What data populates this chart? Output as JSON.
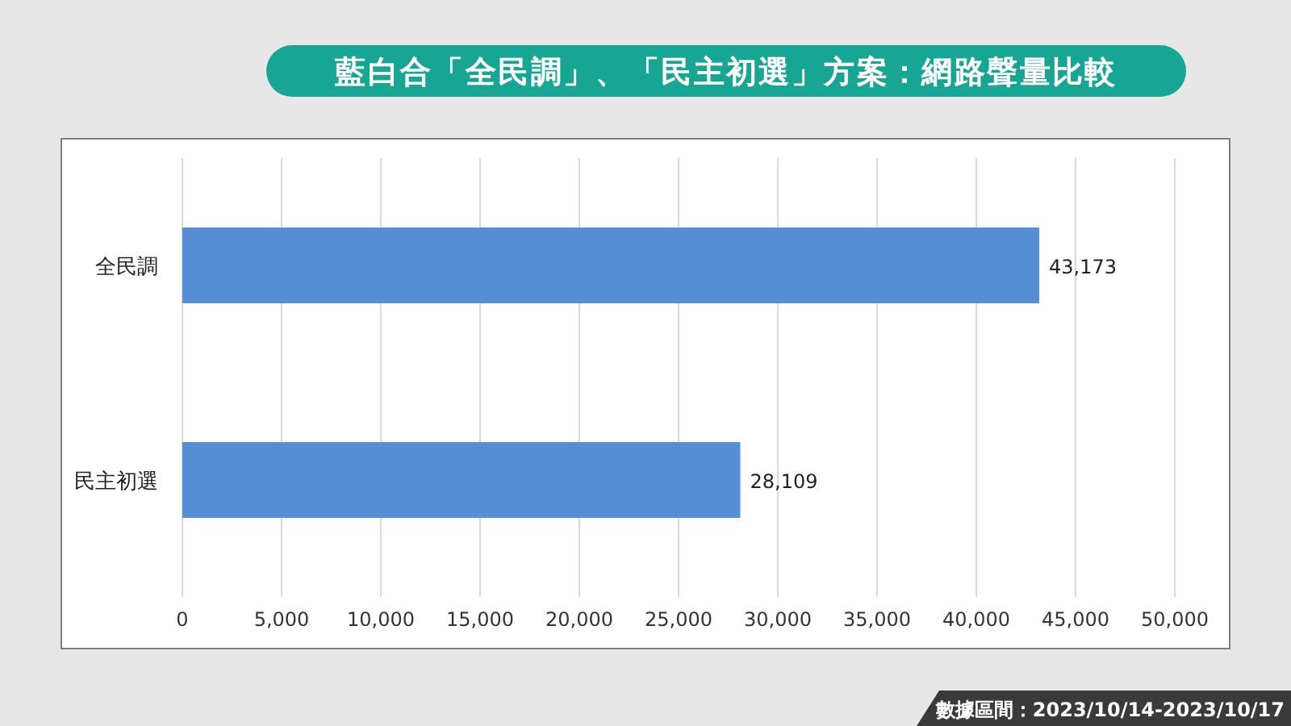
{
  "chart_data": {
    "type": "bar",
    "orientation": "horizontal",
    "title": "藍白合「全民調」、「民主初選」方案：網路聲量比較",
    "categories": [
      "全民調",
      "民主初選"
    ],
    "values": [
      43173,
      28109
    ],
    "value_labels": [
      "43,173",
      "28,109"
    ],
    "color": "#558ed5",
    "xlim": [
      0,
      50000
    ],
    "xticks": [
      0,
      {
        "value": 5000,
        "label": "5,000"
      },
      {
        "value": 10000,
        "label": "10,000"
      },
      {
        "value": 15000,
        "label": "15,000"
      },
      {
        "value": 20000,
        "label": "20,000"
      },
      {
        "value": 25000,
        "label": "25,000"
      },
      {
        "value": 30000,
        "label": "30,000"
      },
      {
        "value": 35000,
        "label": "35,000"
      },
      {
        "value": 40000,
        "label": "40,000"
      },
      {
        "value": 45000,
        "label": "45,000"
      },
      {
        "value": 50000,
        "label": "50,000"
      }
    ],
    "grid": "x",
    "annotations": [
      "數據區間：2023/10/14-2023/10/17"
    ]
  }
}
